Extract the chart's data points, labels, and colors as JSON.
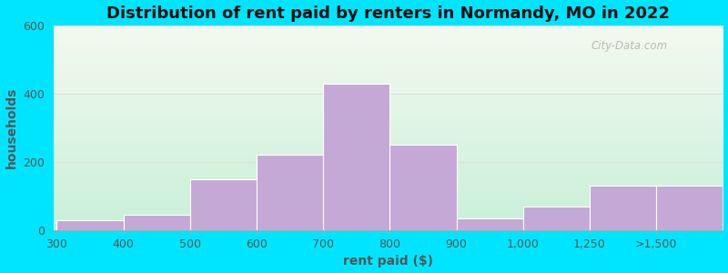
{
  "title": "Distribution of rent paid by renters in Normandy, MO in 2022",
  "xlabel": "rent paid ($)",
  "ylabel": "households",
  "tick_labels": [
    "300",
    "400",
    "500",
    "600",
    "700",
    "800",
    "900",
    "1,000",
    "1,250",
    ">1,500"
  ],
  "bar_heights": [
    30,
    45,
    150,
    220,
    430,
    250,
    35,
    70,
    130,
    130
  ],
  "bar_color": "#c4a8d5",
  "bar_edgecolor": "#ffffff",
  "ylim": [
    0,
    600
  ],
  "yticks": [
    0,
    200,
    400,
    600
  ],
  "outer_color": "#00e5ff",
  "bg_top_color": "#f5f9f0",
  "bg_bottom_color": "#c8f0d8",
  "title_fontsize": 13,
  "axis_label_fontsize": 10,
  "tick_fontsize": 9,
  "watermark": "City-Data.com"
}
